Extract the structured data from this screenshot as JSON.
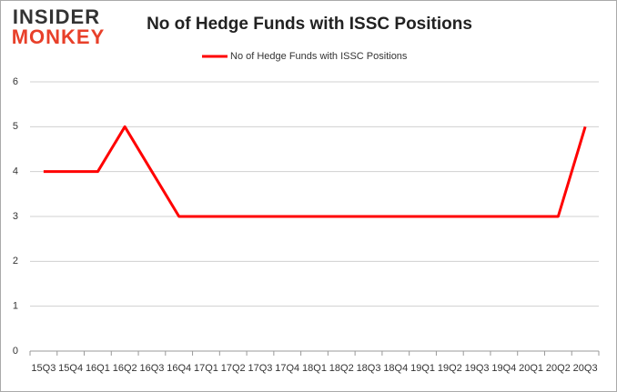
{
  "logo": {
    "top": "INSIDER",
    "bottom": "MONKEY"
  },
  "chart_data": {
    "type": "line",
    "title": "No of Hedge Funds with ISSC Positions",
    "categories": [
      "15Q3",
      "15Q4",
      "16Q1",
      "16Q2",
      "16Q3",
      "16Q4",
      "17Q1",
      "17Q2",
      "17Q3",
      "17Q4",
      "18Q1",
      "18Q2",
      "18Q3",
      "18Q4",
      "19Q1",
      "19Q2",
      "19Q3",
      "19Q4",
      "20Q1",
      "20Q2",
      "20Q3"
    ],
    "series": [
      {
        "name": "No of Hedge Funds with ISSC Positions",
        "color": "#ff0000",
        "values": [
          4,
          4,
          4,
          5,
          4,
          3,
          3,
          3,
          3,
          3,
          3,
          3,
          3,
          3,
          3,
          3,
          3,
          3,
          3,
          3,
          5
        ]
      }
    ],
    "ylim": [
      0,
      6
    ],
    "yticks": [
      0,
      1,
      2,
      3,
      4,
      5,
      6
    ],
    "grid": true,
    "legend": "top"
  }
}
